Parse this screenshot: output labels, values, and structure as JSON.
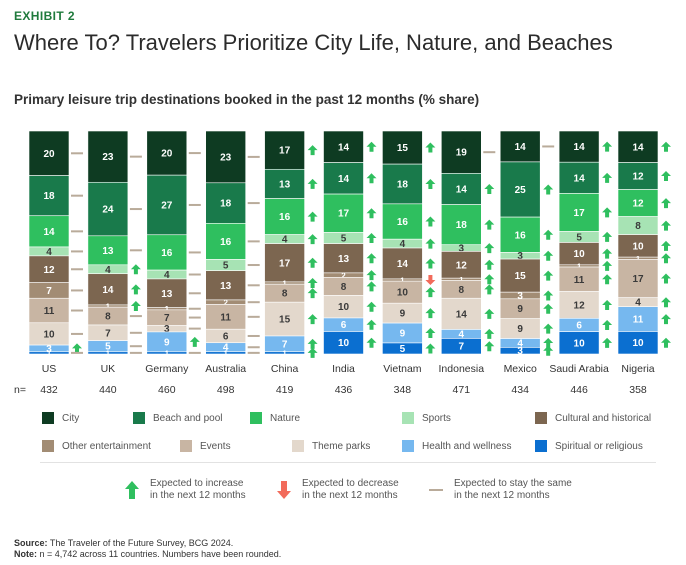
{
  "header": {
    "exhibit": "EXHIBIT 2",
    "title": "Where To? Travelers Prioritize City Life, Nature, and Beaches",
    "subtitle": "Primary leisure trip destinations booked in the past 12 months (% share)"
  },
  "chart_data": {
    "type": "bar",
    "stacked": true,
    "title": "Primary leisure trip destinations booked in the past 12 months (% share)",
    "categories": [
      "US",
      "UK",
      "Germany",
      "Australia",
      "China",
      "India",
      "Vietnam",
      "Indonesia",
      "Mexico",
      "Saudi Arabia",
      "Nigeria"
    ],
    "n_label": "n=",
    "n_values": [
      432,
      440,
      460,
      498,
      419,
      436,
      348,
      471,
      434,
      446,
      358
    ],
    "series": [
      {
        "name": "City",
        "color": "#0e3b22",
        "values": [
          20,
          23,
          20,
          23,
          17,
          14,
          15,
          19,
          14,
          14,
          14
        ],
        "trends": [
          "same",
          "same",
          "same",
          "same",
          "up",
          "up",
          "up",
          "same",
          "same",
          "up",
          "up"
        ]
      },
      {
        "name": "Beach and pool",
        "color": "#197a4b",
        "values": [
          18,
          24,
          27,
          18,
          13,
          14,
          18,
          14,
          25,
          14,
          12
        ],
        "trends": [
          "same",
          "same",
          "same",
          "same",
          "up",
          "up",
          "up",
          "up",
          "up",
          "up",
          "up"
        ]
      },
      {
        "name": "Nature",
        "color": "#2fbf5f",
        "values": [
          14,
          13,
          16,
          16,
          16,
          17,
          16,
          18,
          16,
          17,
          12
        ],
        "trends": [
          "same",
          "same",
          "same",
          "same",
          "up",
          "up",
          "up",
          "up",
          "up",
          "up",
          "up"
        ]
      },
      {
        "name": "Sports",
        "color": "#a7e3b4",
        "values": [
          4,
          4,
          4,
          5,
          4,
          5,
          4,
          3,
          3,
          5,
          8
        ],
        "trends": [
          "same",
          "up",
          "same",
          "same",
          "up",
          "up",
          "up",
          "up",
          "up",
          "up",
          "up"
        ]
      },
      {
        "name": "Cultural and historical",
        "color": "#7c6650",
        "values": [
          12,
          14,
          13,
          13,
          17,
          13,
          14,
          12,
          15,
          10,
          10
        ],
        "trends": [
          "same",
          "up",
          "same",
          "same",
          "up",
          "up",
          "up",
          "up",
          "up",
          "up",
          "up"
        ]
      },
      {
        "name": "Other entertainment",
        "color": "#a28c74",
        "values": [
          7,
          1,
          1,
          2,
          1,
          2,
          1,
          1,
          3,
          1,
          1
        ],
        "trends": [
          "same",
          "up",
          "same",
          "same",
          "up",
          "up",
          "down",
          "up",
          "up",
          "up",
          "up"
        ]
      },
      {
        "name": "Events",
        "color": "#c8b5a3",
        "values": [
          11,
          8,
          7,
          11,
          8,
          8,
          10,
          8,
          9,
          11,
          17
        ],
        "trends": [
          "same",
          "same",
          "same",
          "same",
          "up",
          "up",
          "up",
          "up",
          "up",
          "up",
          "up"
        ]
      },
      {
        "name": "Theme parks",
        "color": "#e3d8cc",
        "values": [
          10,
          7,
          3,
          6,
          15,
          10,
          9,
          14,
          9,
          12,
          4
        ],
        "trends": [
          "same",
          "same",
          "same",
          "same",
          "up",
          "up",
          "up",
          "up",
          "up",
          "up",
          "up"
        ]
      },
      {
        "name": "Health and wellness",
        "color": "#76b8ef",
        "values": [
          3,
          5,
          9,
          4,
          7,
          6,
          9,
          4,
          4,
          6,
          11
        ],
        "trends": [
          "up",
          "same",
          "up",
          "same",
          "up",
          "up",
          "up",
          "up",
          "up",
          "up",
          "up"
        ]
      },
      {
        "name": "Spiritual or religious",
        "color": "#0b6fd0",
        "values": [
          1,
          1,
          1,
          1,
          1,
          10,
          5,
          7,
          3,
          10,
          10
        ],
        "trends": [
          "same",
          "same",
          "same",
          "same",
          "up",
          "up",
          "up",
          "up",
          "up",
          "up",
          "up"
        ]
      }
    ],
    "ylim": [
      0,
      100
    ],
    "grid": false,
    "legend_position": "bottom"
  },
  "trend_key": [
    {
      "symbol": "up",
      "color": "#2fbf5f",
      "line1": "Expected to increase",
      "line2": "in the next 12 months"
    },
    {
      "symbol": "down",
      "color": "#f26b5b",
      "line1": "Expected to decrease",
      "line2": "in the next 12 months"
    },
    {
      "symbol": "same",
      "color": "#b9ab9a",
      "line1": "Expected to stay the same",
      "line2": "in the next 12 months"
    }
  ],
  "footer": {
    "source_label": "Source:",
    "source_text": "The Traveler of the Future Survey, BCG 2024.",
    "note_label": "Note:",
    "note_text": "n = 4,742 across 11 countries. Numbers have been rounded."
  }
}
